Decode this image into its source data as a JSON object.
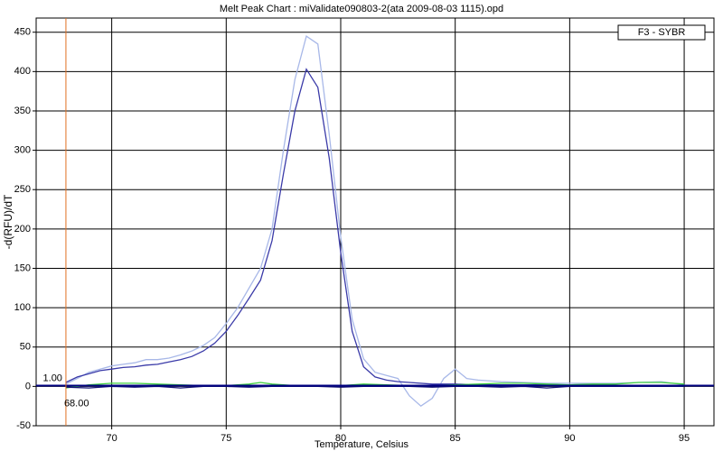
{
  "chart_data": {
    "type": "line",
    "title": "Melt Peak Chart : miValidate090803-2(ata 2009-08-03 1115).opd",
    "x_label": "Temperature, Celsius",
    "y_label": "-d(RFU)/dT",
    "legend_label": "F3 - SYBR",
    "xlim": [
      66.7,
      96.3
    ],
    "ylim": [
      -50,
      468
    ],
    "xticks": [
      70,
      75,
      80,
      85,
      90,
      95
    ],
    "yticks": [
      -50,
      0,
      50,
      100,
      150,
      200,
      250,
      300,
      350,
      400,
      450
    ],
    "grid": true,
    "threshold": {
      "value": 1,
      "label": "1.00",
      "color": "#000080"
    },
    "start_marker": {
      "value": 68,
      "label": "68.00",
      "color": "#e07020"
    },
    "series": [
      {
        "color": "#a8b8e8",
        "x": [
          68,
          68.5,
          69,
          69.5,
          70,
          70.5,
          71,
          71.5,
          72,
          72.5,
          73,
          73.5,
          74,
          74.5,
          75,
          75.5,
          76,
          76.5,
          77,
          77.5,
          78,
          78.5,
          79,
          79.5,
          80,
          80.5,
          81,
          81.5,
          82,
          82.5,
          83,
          83.5,
          84,
          84.5,
          85,
          85.5,
          86,
          87,
          88,
          89,
          90,
          91,
          92,
          93,
          94,
          95
        ],
        "values": [
          3,
          10,
          18,
          22,
          26,
          28,
          30,
          34,
          34,
          36,
          40,
          45,
          52,
          62,
          80,
          100,
          125,
          150,
          200,
          300,
          390,
          445,
          435,
          320,
          190,
          85,
          35,
          18,
          14,
          10,
          -12,
          -25,
          -15,
          10,
          22,
          10,
          8,
          6,
          5,
          4,
          4,
          4,
          4,
          5,
          6,
          2
        ]
      },
      {
        "color": "#3a3aa8",
        "x": [
          68,
          68.5,
          69,
          69.5,
          70,
          70.5,
          71,
          71.5,
          72,
          72.5,
          73,
          73.5,
          74,
          74.5,
          75,
          75.5,
          76,
          76.5,
          77,
          77.5,
          78,
          78.5,
          79,
          79.5,
          80,
          80.5,
          81,
          81.5,
          82,
          82.5,
          83,
          84,
          85,
          86,
          87,
          88,
          89,
          90,
          91,
          92,
          93,
          94,
          95
        ],
        "values": [
          5,
          12,
          16,
          20,
          22,
          24,
          25,
          27,
          28,
          31,
          34,
          38,
          45,
          55,
          70,
          90,
          112,
          135,
          185,
          270,
          350,
          403,
          380,
          290,
          170,
          70,
          25,
          12,
          8,
          6,
          5,
          3,
          3,
          2,
          2,
          2,
          2,
          1,
          1,
          1,
          1,
          1,
          1
        ]
      },
      {
        "color": "#40d040",
        "x": [
          68,
          69,
          70,
          71,
          72,
          73,
          74,
          75,
          76,
          76.5,
          77,
          78,
          79,
          80,
          81,
          82,
          83,
          84,
          85,
          86,
          87,
          88,
          89,
          90,
          91,
          92,
          93,
          94,
          95
        ],
        "values": [
          -2,
          2,
          4,
          4,
          3,
          2,
          1,
          1,
          3,
          5,
          3,
          1,
          1,
          1,
          3,
          2,
          1,
          1,
          2,
          3,
          4,
          4,
          3,
          2,
          3,
          3,
          5,
          5,
          3
        ]
      },
      {
        "color": "#101070",
        "x": [
          68,
          69,
          70,
          71,
          72,
          73,
          74,
          75,
          76,
          77,
          78,
          79,
          80,
          81,
          82,
          83,
          84,
          85,
          86,
          87,
          88,
          89,
          90,
          91,
          92,
          93,
          94,
          95
        ],
        "values": [
          -1,
          -2,
          0,
          -1,
          0,
          -2,
          0,
          0,
          -1,
          0,
          0,
          0,
          -1,
          0,
          0,
          0,
          -1,
          0,
          0,
          -1,
          0,
          -2,
          0,
          0,
          0,
          0,
          0,
          0
        ]
      }
    ]
  }
}
